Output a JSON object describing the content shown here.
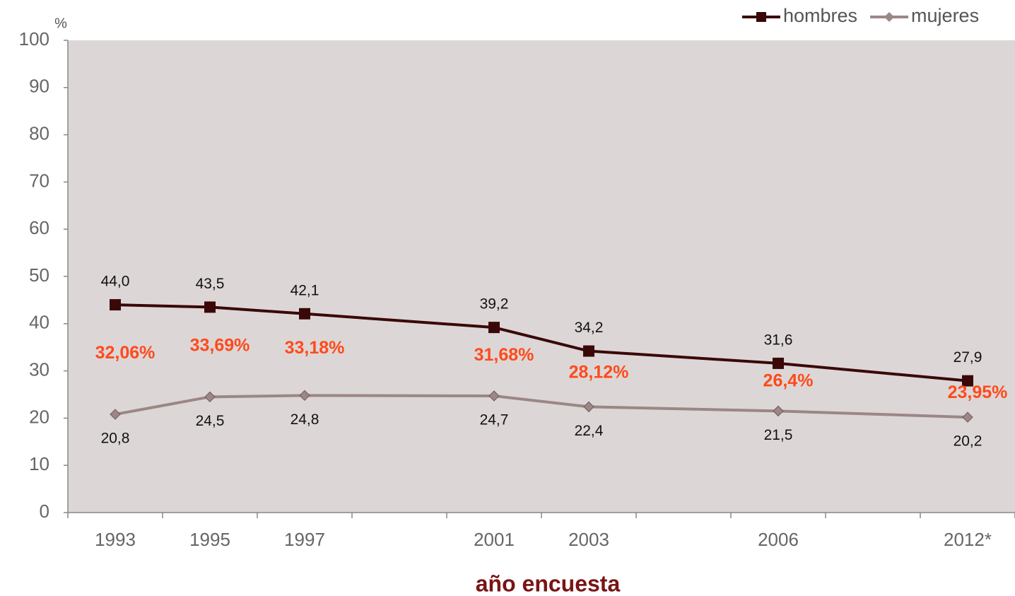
{
  "chart_data": {
    "type": "line",
    "y_unit": "%",
    "x_label": "año encuesta",
    "categories": [
      "1993",
      "1995",
      "1997",
      null,
      "2001",
      "2003",
      null,
      "2006",
      null,
      "2012*"
    ],
    "series": [
      {
        "name": "hombres",
        "color": "#3a0808",
        "marker": "square",
        "values": [
          44.0,
          43.5,
          42.1,
          null,
          39.2,
          34.2,
          null,
          31.6,
          null,
          27.9
        ],
        "value_labels": [
          "44,0",
          "43,5",
          "42,1",
          null,
          "39,2",
          "34,2",
          null,
          "31,6",
          null,
          "27,9"
        ]
      },
      {
        "name": "mujeres",
        "color": "#9c8686",
        "marker": "diamond",
        "values": [
          20.8,
          24.5,
          24.8,
          null,
          24.7,
          22.4,
          null,
          21.5,
          null,
          20.2
        ],
        "value_labels": [
          "20,8",
          "24,5",
          "24,8",
          null,
          "24,7",
          "22,4",
          null,
          "21,5",
          null,
          "20,2"
        ]
      }
    ],
    "annotations": [
      "32,06%",
      "33,69%",
      "33,18%",
      "31,68%",
      "28,12%",
      "26,4%",
      "23,95%"
    ],
    "ylim": [
      0,
      100
    ],
    "yticks": [
      0,
      10,
      20,
      30,
      40,
      50,
      60,
      70,
      80,
      90,
      100
    ],
    "grid": false,
    "legend": "top-right"
  }
}
